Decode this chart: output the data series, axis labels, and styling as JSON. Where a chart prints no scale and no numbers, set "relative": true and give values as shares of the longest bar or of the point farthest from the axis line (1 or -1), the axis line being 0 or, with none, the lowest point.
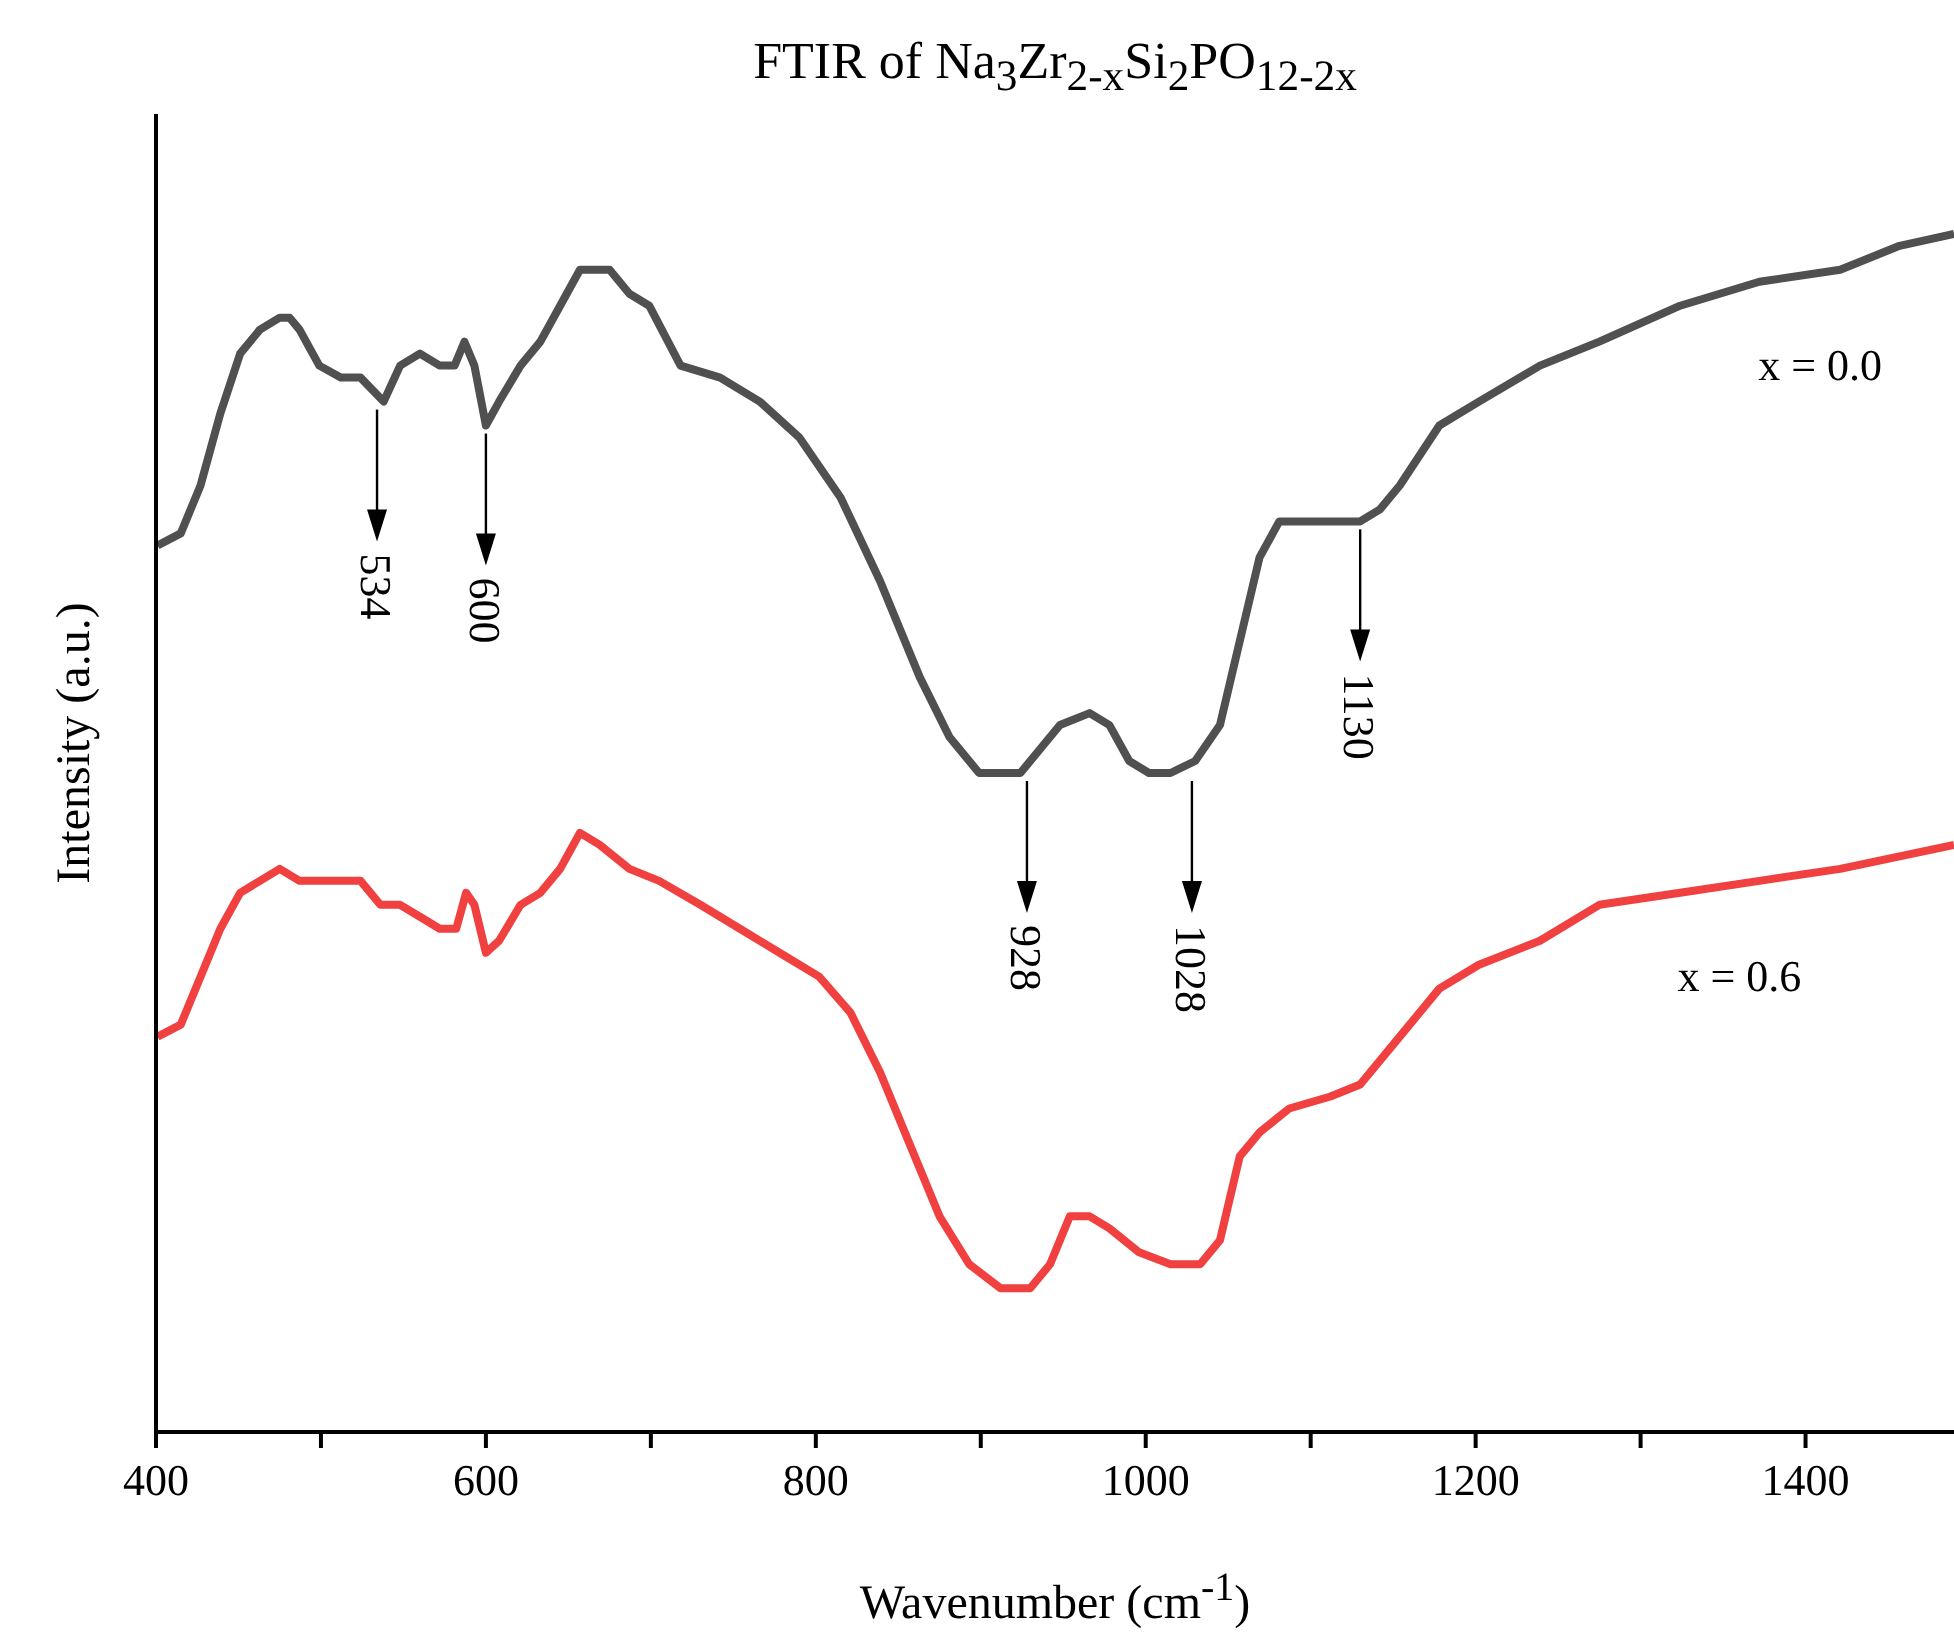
{
  "chart_data": {
    "type": "line",
    "title": "FTIR of Na$_{3}$Zr$_{2-x}$Si$_{2}$PO$_{12-2x}$",
    "xlabel": "Wavenumber (cm$^{-1}$)",
    "ylabel": "Intensity (a.u.)",
    "relative": true,
    "xlim": [
      400,
      1490
    ],
    "xticks": [
      400,
      {
        "value": 500,
        "label": null
      },
      600,
      {
        "value": 700,
        "label": null
      },
      800,
      {
        "value": 900,
        "label": null
      },
      1000,
      {
        "value": 1100,
        "label": null
      },
      1200,
      {
        "value": 1300,
        "label": null
      },
      1400
    ],
    "grid": false,
    "legend": false,
    "marker": "none",
    "line_style": "solid",
    "series": [
      {
        "name": "x = 0.0",
        "color": "#505050",
        "x": [
          401,
          415,
          427,
          439,
          451,
          463,
          475,
          481,
          487,
          499,
          512,
          524,
          538,
          548,
          560,
          572,
          581,
          587,
          593,
          600,
          608,
          621,
          633,
          645,
          657,
          665,
          675,
          687,
          699,
          718,
          742,
          766,
          790,
          815,
          839,
          863,
          881,
          899,
          912,
          924,
          936,
          948,
          966,
          978,
          990,
          1002,
          1015,
          1030,
          1045,
          1057,
          1069,
          1081,
          1099,
          1112,
          1130,
          1142,
          1154,
          1178,
          1202,
          1239,
          1275,
          1324,
          1372,
          1421,
          1457,
          1490
        ],
        "values": [
          0.74,
          0.75,
          0.79,
          0.85,
          0.9,
          0.92,
          0.93,
          0.93,
          0.92,
          0.89,
          0.88,
          0.88,
          0.86,
          0.89,
          0.9,
          0.89,
          0.89,
          0.91,
          0.89,
          0.84,
          0.86,
          0.89,
          0.91,
          0.94,
          0.97,
          0.97,
          0.97,
          0.95,
          0.94,
          0.89,
          0.88,
          0.86,
          0.83,
          0.78,
          0.71,
          0.63,
          0.58,
          0.55,
          0.55,
          0.55,
          0.57,
          0.59,
          0.6,
          0.59,
          0.56,
          0.55,
          0.55,
          0.56,
          0.59,
          0.66,
          0.73,
          0.76,
          0.76,
          0.76,
          0.76,
          0.77,
          0.79,
          0.84,
          0.86,
          0.89,
          0.91,
          0.94,
          0.96,
          0.97,
          0.99,
          1.0
        ]
      },
      {
        "name": "x = 0.6",
        "color": "#f04040",
        "x": [
          401,
          415,
          427,
          439,
          451,
          463,
          475,
          487,
          499,
          512,
          524,
          536,
          548,
          560,
          572,
          582,
          588,
          593,
          600,
          608,
          621,
          633,
          645,
          657,
          669,
          687,
          705,
          730,
          754,
          778,
          802,
          821,
          839,
          857,
          875,
          893,
          912,
          930,
          942,
          954,
          966,
          978,
          996,
          1015,
          1033,
          1045,
          1057,
          1069,
          1087,
          1112,
          1130,
          1154,
          1178,
          1202,
          1239,
          1275,
          1324,
          1372,
          1421,
          1490
        ],
        "values": [
          0.33,
          0.34,
          0.38,
          0.42,
          0.45,
          0.46,
          0.47,
          0.46,
          0.46,
          0.46,
          0.46,
          0.44,
          0.44,
          0.43,
          0.42,
          0.42,
          0.45,
          0.44,
          0.4,
          0.41,
          0.44,
          0.45,
          0.47,
          0.5,
          0.49,
          0.47,
          0.46,
          0.44,
          0.42,
          0.4,
          0.38,
          0.35,
          0.3,
          0.24,
          0.18,
          0.14,
          0.12,
          0.12,
          0.14,
          0.18,
          0.18,
          0.17,
          0.15,
          0.14,
          0.14,
          0.16,
          0.23,
          0.25,
          0.27,
          0.28,
          0.29,
          0.33,
          0.37,
          0.39,
          0.41,
          0.44,
          0.45,
          0.46,
          0.47,
          0.49
        ]
      }
    ],
    "annotations": [
      {
        "text": "534",
        "x": 534,
        "y": 0.86
      },
      {
        "text": "600",
        "x": 600,
        "y": 0.84
      },
      {
        "text": "928",
        "x": 928,
        "y": 0.55
      },
      {
        "text": "1028",
        "x": 1028,
        "y": 0.55
      },
      {
        "text": "1130",
        "x": 1130,
        "y": 0.76
      }
    ]
  }
}
